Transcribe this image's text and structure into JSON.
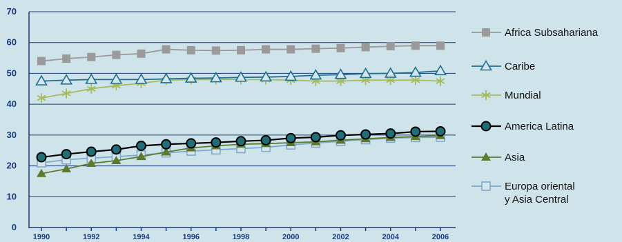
{
  "chart_data": {
    "type": "line",
    "x": [
      1990,
      1991,
      1992,
      1993,
      1994,
      1995,
      1996,
      1997,
      1998,
      1999,
      2000,
      2001,
      2002,
      2003,
      2004,
      2005,
      2006
    ],
    "xticks": [
      "1990",
      "1992",
      "1994",
      "1996",
      "1998",
      "2000",
      "2002",
      "2004",
      "2006"
    ],
    "yticks": [
      "0",
      "10",
      "20",
      "30",
      "40",
      "50",
      "60",
      "70"
    ],
    "ylim": [
      0,
      70
    ],
    "grid": true,
    "legend_position": "right",
    "series": [
      {
        "name": "Africa Subsahariana",
        "color": "#9a9a9a",
        "marker": "square",
        "values": [
          54.0,
          54.8,
          55.3,
          56.0,
          56.4,
          57.8,
          57.5,
          57.4,
          57.5,
          57.8,
          57.8,
          58.0,
          58.2,
          58.5,
          58.8,
          59.0,
          59.0
        ]
      },
      {
        "name": "Caribe",
        "color": "#1f6e8c",
        "marker": "triangle-open",
        "values": [
          47.5,
          47.8,
          48.0,
          48.0,
          48.0,
          48.2,
          48.4,
          48.5,
          48.7,
          48.8,
          49.0,
          49.4,
          49.6,
          49.9,
          50.0,
          50.3,
          50.8
        ]
      },
      {
        "name": "Mundial",
        "color": "#a6ba5c",
        "marker": "asterisk",
        "values": [
          42.0,
          43.5,
          45.0,
          46.0,
          46.8,
          47.8,
          48.0,
          48.0,
          48.0,
          48.0,
          47.8,
          47.5,
          47.5,
          47.8,
          47.8,
          47.8,
          47.5
        ]
      },
      {
        "name": "America Latina",
        "color": "#000000",
        "marker": "circle",
        "values": [
          22.8,
          23.8,
          24.6,
          25.3,
          26.5,
          27.0,
          27.3,
          27.6,
          28.0,
          28.3,
          29.0,
          29.3,
          29.9,
          30.2,
          30.5,
          31.1,
          31.2
        ]
      },
      {
        "name": "Asia",
        "color": "#5c7a2e",
        "marker": "triangle",
        "values": [
          17.5,
          19.0,
          20.8,
          21.7,
          23.0,
          24.5,
          25.8,
          26.5,
          27.0,
          27.2,
          27.5,
          27.8,
          28.3,
          28.8,
          29.2,
          29.5,
          29.8
        ]
      },
      {
        "name": "Europa oriental\ny Asia Central",
        "color": "#7fa9c9",
        "marker": "square-open",
        "values": [
          21.0,
          22.0,
          22.5,
          23.0,
          23.5,
          24.2,
          24.8,
          25.2,
          25.6,
          26.0,
          26.8,
          27.4,
          28.0,
          28.5,
          29.0,
          29.2,
          29.3
        ]
      }
    ]
  }
}
